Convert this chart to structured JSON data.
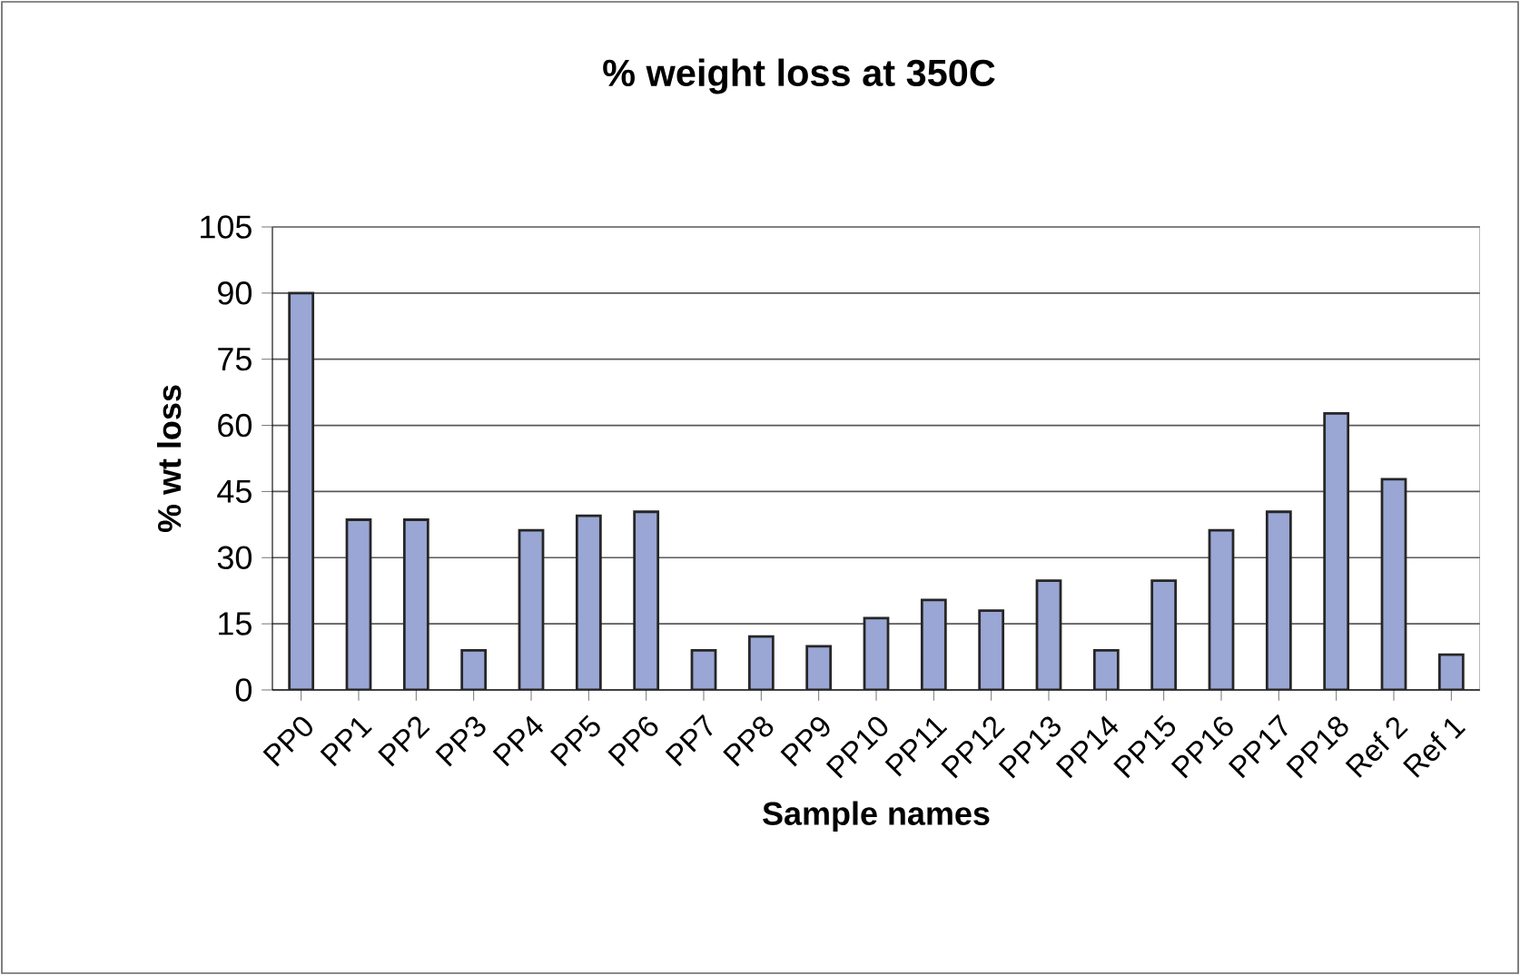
{
  "chart_data": {
    "type": "bar",
    "title": "% weight loss at 350C",
    "xlabel": "Sample names",
    "ylabel": "% wt loss",
    "categories": [
      "PP0",
      "PP1",
      "PP2",
      "PP3",
      "PP4",
      "PP5",
      "PP6",
      "PP7",
      "PP8",
      "PP9",
      "PP10",
      "PP11",
      "PP12",
      "PP13",
      "PP14",
      "PP15",
      "PP16",
      "PP17",
      "PP18",
      "Ref 2",
      "Ref 1"
    ],
    "values": [
      90,
      38.6,
      38.6,
      9,
      36.2,
      39.5,
      40.4,
      9,
      12.1,
      9.9,
      16.3,
      20.4,
      18,
      24.8,
      9,
      24.8,
      36.2,
      40.4,
      62.7,
      47.8,
      8
    ],
    "color": "#9aa6d4",
    "ylim": [
      0,
      105
    ],
    "yticks": [
      0,
      15,
      30,
      45,
      60,
      75,
      90,
      105
    ],
    "grid": "y"
  }
}
